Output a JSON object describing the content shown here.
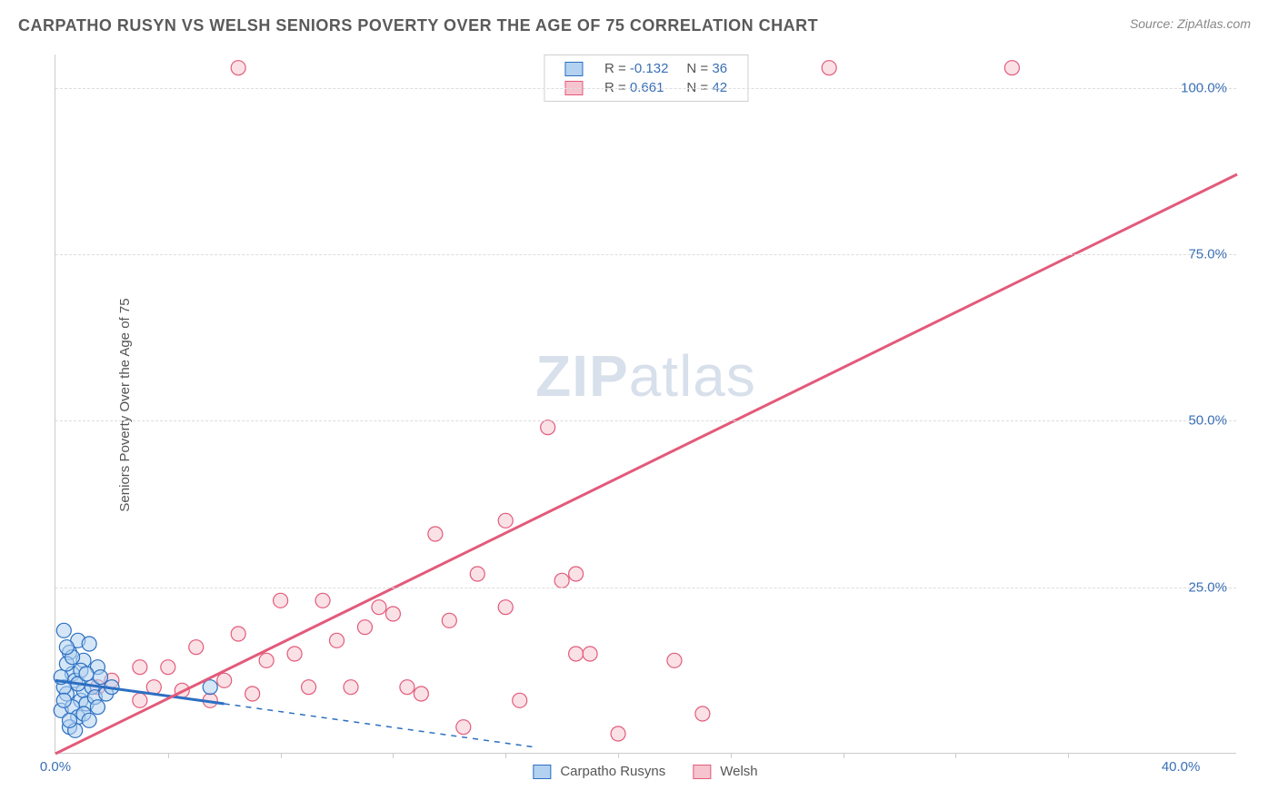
{
  "header": {
    "title": "CARPATHO RUSYN VS WELSH SENIORS POVERTY OVER THE AGE OF 75 CORRELATION CHART",
    "source": "Source: ZipAtlas.com"
  },
  "chart": {
    "type": "scatter",
    "ylabel": "Seniors Poverty Over the Age of 75",
    "xlim": [
      0,
      42
    ],
    "ylim": [
      0,
      105
    ],
    "xtick_labels": [
      "0.0%",
      "40.0%"
    ],
    "xtick_positions": [
      0,
      40
    ],
    "xtick_minor_positions": [
      4,
      8,
      12,
      16,
      20,
      24,
      28,
      32,
      36
    ],
    "ytick_labels": [
      "25.0%",
      "50.0%",
      "75.0%",
      "100.0%"
    ],
    "ytick_positions": [
      25,
      50,
      75,
      100
    ],
    "background_color": "#ffffff",
    "grid_color": "#dddddd",
    "axis_color": "#cccccc",
    "label_color": "#3a6fb5",
    "marker_radius": 8,
    "marker_stroke_width": 1.2,
    "watermark": {
      "bold": "ZIP",
      "light": "atlas"
    },
    "series": {
      "carpatho": {
        "label": "Carpatho Rusyns",
        "fill": "#b3d1f0",
        "stroke": "#2b6fc2",
        "fill_opacity": 0.55,
        "R": "-0.132",
        "N": "36",
        "trend": {
          "x1": 0,
          "y1": 11,
          "x2": 17,
          "y2": 1,
          "color": "#2b6fc2",
          "width": 3,
          "extrapolate_dash": true,
          "dash_x1": 6,
          "dash_y1": 7.5,
          "dash_x2": 17,
          "dash_y2": 1
        },
        "points": [
          [
            0.3,
            18.5
          ],
          [
            0.6,
            12.0
          ],
          [
            0.5,
            15.2
          ],
          [
            0.8,
            17.0
          ],
          [
            0.4,
            9.0
          ],
          [
            1.0,
            14.0
          ],
          [
            0.7,
            11.0
          ],
          [
            1.2,
            16.5
          ],
          [
            0.2,
            6.5
          ],
          [
            0.9,
            8.0
          ],
          [
            1.5,
            13.0
          ],
          [
            0.6,
            7.0
          ],
          [
            1.0,
            9.5
          ],
          [
            0.4,
            13.5
          ],
          [
            1.3,
            10.0
          ],
          [
            0.8,
            5.5
          ],
          [
            0.5,
            4.0
          ],
          [
            1.1,
            7.5
          ],
          [
            0.3,
            10.0
          ],
          [
            1.6,
            11.5
          ],
          [
            0.7,
            3.5
          ],
          [
            0.9,
            12.5
          ],
          [
            1.4,
            8.5
          ],
          [
            0.2,
            11.5
          ],
          [
            1.0,
            6.0
          ],
          [
            0.6,
            14.5
          ],
          [
            1.8,
            9.0
          ],
          [
            0.4,
            16.0
          ],
          [
            1.2,
            5.0
          ],
          [
            0.8,
            10.5
          ],
          [
            1.5,
            7.0
          ],
          [
            0.3,
            8.0
          ],
          [
            1.1,
            12.0
          ],
          [
            0.5,
            5.0
          ],
          [
            2.0,
            10.0
          ],
          [
            5.5,
            10.0
          ]
        ]
      },
      "welsh": {
        "label": "Welsh",
        "fill": "#f5c4ce",
        "stroke": "#e35a7a",
        "fill_opacity": 0.5,
        "R": "0.661",
        "N": "42",
        "trend": {
          "x1": 0,
          "y1": 0,
          "x2": 42,
          "y2": 87,
          "color": "#e35a7a",
          "width": 3
        },
        "points": [
          [
            3.5,
            10
          ],
          [
            2.0,
            11
          ],
          [
            4.5,
            9.5
          ],
          [
            3.0,
            8
          ],
          [
            5.0,
            16
          ],
          [
            6.0,
            11
          ],
          [
            4.0,
            13
          ],
          [
            7.0,
            9
          ],
          [
            8.0,
            23
          ],
          [
            6.5,
            18
          ],
          [
            8.5,
            15
          ],
          [
            9.5,
            23
          ],
          [
            9.0,
            10
          ],
          [
            10.0,
            17
          ],
          [
            10.5,
            10
          ],
          [
            11.0,
            19
          ],
          [
            11.5,
            22
          ],
          [
            12.0,
            21
          ],
          [
            13.5,
            33
          ],
          [
            12.5,
            10
          ],
          [
            14.0,
            20
          ],
          [
            15.0,
            27
          ],
          [
            14.5,
            4
          ],
          [
            16.0,
            35
          ],
          [
            16.0,
            22
          ],
          [
            17.5,
            49
          ],
          [
            18.0,
            26
          ],
          [
            18.5,
            27
          ],
          [
            18.5,
            15
          ],
          [
            19.0,
            15
          ],
          [
            20.0,
            3
          ],
          [
            22.0,
            14
          ],
          [
            23.0,
            6
          ],
          [
            27.5,
            103
          ],
          [
            34.0,
            103
          ],
          [
            6.5,
            103
          ],
          [
            1.5,
            10
          ],
          [
            3.0,
            13
          ],
          [
            5.5,
            8
          ],
          [
            7.5,
            14
          ],
          [
            13.0,
            9
          ],
          [
            16.5,
            8
          ]
        ]
      }
    }
  }
}
